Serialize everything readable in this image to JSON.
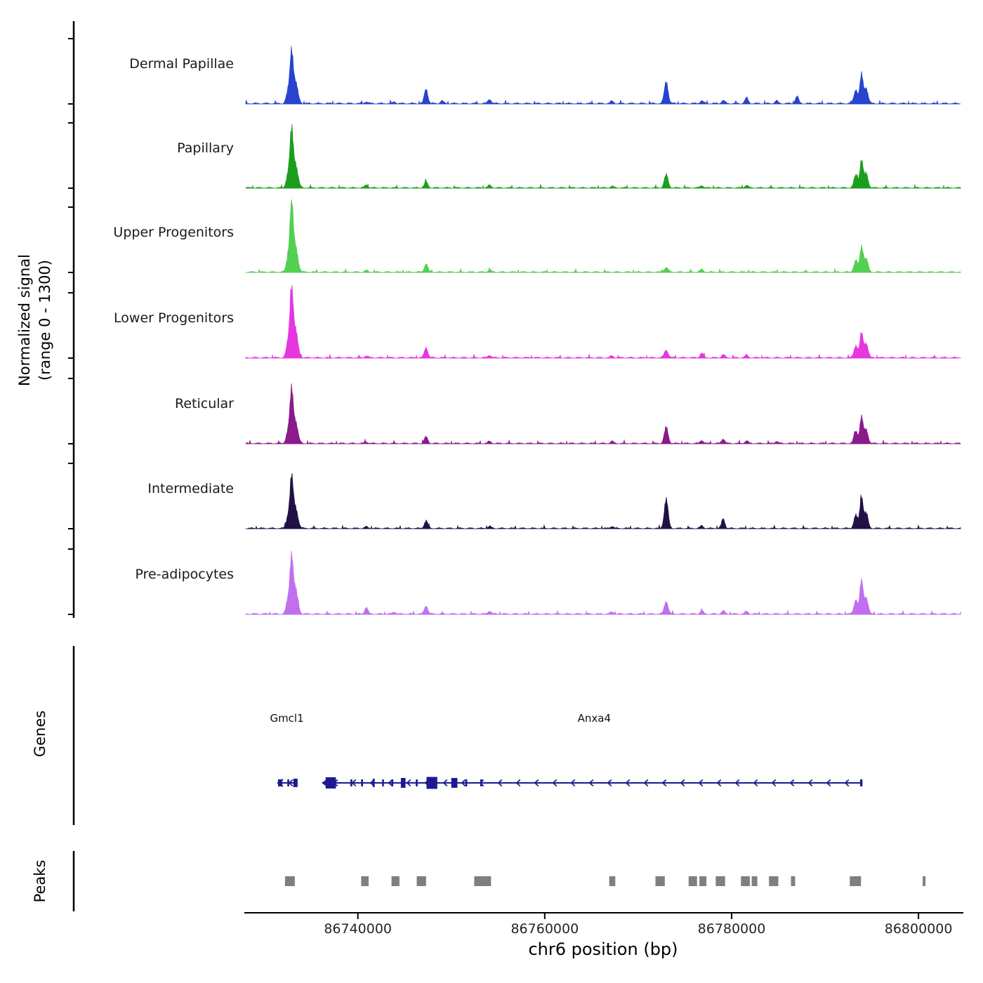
{
  "chart_data": {
    "type": "area",
    "title": "",
    "xlabel": "chr6 position (bp)",
    "ylabel_line1": "Normalized signal",
    "ylabel_line2": "(range 0 - 1300)",
    "x_range": [
      86728000,
      86804500
    ],
    "y_range": [
      0,
      1300
    ],
    "x_ticks": [
      86740000,
      86760000,
      86780000,
      86800000
    ],
    "x_tick_labels": [
      "86740000",
      "86760000",
      "86780000",
      "86800000"
    ],
    "sections": {
      "genes_label": "Genes",
      "peaks_label": "Peaks"
    },
    "series": [
      {
        "name": "Dermal Papillae",
        "color": "#2743cf",
        "noise": 26,
        "peaks": [
          [
            86732550,
            250,
            200
          ],
          [
            86732900,
            900,
            160
          ],
          [
            86733300,
            430,
            260
          ],
          [
            86740900,
            35
          ],
          [
            86743900,
            30
          ],
          [
            86747300,
            290,
            180
          ],
          [
            86749000,
            50
          ],
          [
            86754100,
            85
          ],
          [
            86767200,
            45
          ],
          [
            86773000,
            430,
            200
          ],
          [
            86776800,
            55
          ],
          [
            86779100,
            60
          ],
          [
            86781600,
            110
          ],
          [
            86784800,
            50
          ],
          [
            86787000,
            140
          ],
          [
            86793300,
            270,
            200
          ],
          [
            86793900,
            560
          ],
          [
            86794400,
            300,
            200
          ]
        ]
      },
      {
        "name": "Papillary",
        "color": "#1c9e1c",
        "noise": 22,
        "peaks": [
          [
            86732550,
            280,
            200
          ],
          [
            86732900,
            1000,
            160
          ],
          [
            86733300,
            480,
            260
          ],
          [
            86740900,
            55
          ],
          [
            86747300,
            120,
            180
          ],
          [
            86754100,
            50
          ],
          [
            86767200,
            30
          ],
          [
            86773000,
            260,
            200
          ],
          [
            86776800,
            45
          ],
          [
            86781600,
            50
          ],
          [
            86793300,
            250,
            200
          ],
          [
            86793900,
            540
          ],
          [
            86794400,
            280,
            200
          ]
        ]
      },
      {
        "name": "Upper Progenitors",
        "color": "#52d052",
        "noise": 22,
        "peaks": [
          [
            86732550,
            300,
            200
          ],
          [
            86732900,
            1270,
            160
          ],
          [
            86733300,
            520,
            260
          ],
          [
            86740900,
            30
          ],
          [
            86747300,
            160,
            180
          ],
          [
            86754100,
            40
          ],
          [
            86773000,
            90,
            200
          ],
          [
            86776800,
            50
          ],
          [
            86793300,
            230,
            200
          ],
          [
            86793900,
            500
          ],
          [
            86794400,
            260,
            200
          ]
        ]
      },
      {
        "name": "Lower Progenitors",
        "color": "#e636e0",
        "noise": 24,
        "peaks": [
          [
            86732550,
            320,
            200
          ],
          [
            86732900,
            1230,
            160
          ],
          [
            86733300,
            560,
            260
          ],
          [
            86740900,
            40
          ],
          [
            86747300,
            200,
            180
          ],
          [
            86754100,
            50
          ],
          [
            86767200,
            35
          ],
          [
            86773000,
            150,
            200
          ],
          [
            86776800,
            90
          ],
          [
            86779100,
            60
          ],
          [
            86781600,
            50
          ],
          [
            86793300,
            240,
            200
          ],
          [
            86793900,
            480
          ],
          [
            86794400,
            280,
            200
          ]
        ]
      },
      {
        "name": "Reticular",
        "color": "#8b1a8b",
        "noise": 22,
        "peaks": [
          [
            86732550,
            260,
            200
          ],
          [
            86732900,
            920,
            160
          ],
          [
            86733300,
            440,
            260
          ],
          [
            86740900,
            30
          ],
          [
            86747300,
            130,
            180
          ],
          [
            86754100,
            40
          ],
          [
            86767200,
            40
          ],
          [
            86773000,
            320,
            200
          ],
          [
            86776800,
            60
          ],
          [
            86779100,
            90
          ],
          [
            86781600,
            50
          ],
          [
            86784800,
            40
          ],
          [
            86793300,
            240,
            200
          ],
          [
            86793900,
            520
          ],
          [
            86794400,
            270,
            200
          ]
        ]
      },
      {
        "name": "Intermediate",
        "color": "#221144",
        "noise": 22,
        "peaks": [
          [
            86732550,
            250,
            200
          ],
          [
            86732900,
            880,
            160
          ],
          [
            86733300,
            420,
            260
          ],
          [
            86740900,
            30
          ],
          [
            86747300,
            150,
            180
          ],
          [
            86754100,
            40
          ],
          [
            86767200,
            40
          ],
          [
            86773000,
            580,
            200
          ],
          [
            86776800,
            50
          ],
          [
            86779100,
            190
          ],
          [
            86793300,
            260,
            200
          ],
          [
            86793900,
            620
          ],
          [
            86794400,
            300,
            200
          ]
        ]
      },
      {
        "name": "Pre-adipocytes",
        "color": "#bf6ff0",
        "noise": 24,
        "peaks": [
          [
            86732550,
            300,
            200
          ],
          [
            86732900,
            975,
            160
          ],
          [
            86733300,
            500,
            260
          ],
          [
            86740900,
            130
          ],
          [
            86743900,
            40
          ],
          [
            86747300,
            160,
            180
          ],
          [
            86754100,
            60
          ],
          [
            86767200,
            40
          ],
          [
            86773000,
            250,
            200
          ],
          [
            86776800,
            60
          ],
          [
            86779100,
            60
          ],
          [
            86781600,
            50
          ],
          [
            86793300,
            280,
            200
          ],
          [
            86793900,
            660
          ],
          [
            86794400,
            320,
            200
          ]
        ]
      }
    ],
    "genes": [
      {
        "name": "Gmcl1",
        "start": 86731450,
        "end": 86733550,
        "strand": "-",
        "label_bp": 86732400,
        "exons": [
          [
            86731450,
            86731900,
            10
          ],
          [
            86732450,
            86732650,
            10
          ],
          [
            86733100,
            86733550,
            12
          ]
        ]
      },
      {
        "name": "Anxa4",
        "start": 86736250,
        "end": 86794000,
        "strand": "-",
        "label_bp": 86765300,
        "exons": [
          [
            86736550,
            86737650,
            16
          ],
          [
            86739200,
            86739400,
            10
          ],
          [
            86740350,
            86740550,
            10
          ],
          [
            86741600,
            86741800,
            12
          ],
          [
            86742600,
            86742750,
            10
          ],
          [
            86743600,
            86743750,
            10
          ],
          [
            86744600,
            86745100,
            14
          ],
          [
            86746200,
            86746400,
            10
          ],
          [
            86747350,
            86748500,
            17
          ],
          [
            86750000,
            86750650,
            14
          ],
          [
            86751500,
            86751700,
            10
          ],
          [
            86753100,
            86753300,
            10
          ],
          [
            86793750,
            86794000,
            10
          ]
        ]
      }
    ],
    "peak_regions": [
      [
        86732200,
        86733250
      ],
      [
        86740350,
        86741150
      ],
      [
        86743600,
        86744450
      ],
      [
        86746300,
        86747300
      ],
      [
        86752450,
        86754250
      ],
      [
        86766900,
        86767550
      ],
      [
        86771850,
        86772850
      ],
      [
        86775400,
        86776300
      ],
      [
        86776550,
        86777300
      ],
      [
        86778300,
        86779300
      ],
      [
        86781000,
        86781950
      ],
      [
        86782150,
        86782750
      ],
      [
        86784000,
        86785000
      ],
      [
        86786350,
        86786800
      ],
      [
        86792650,
        86793850
      ],
      [
        86800450,
        86800750
      ]
    ]
  },
  "colors": {
    "gene": "#1b1b8f",
    "peak": "#7f7f7f",
    "baseline": "#909090",
    "axis": "#000000"
  }
}
